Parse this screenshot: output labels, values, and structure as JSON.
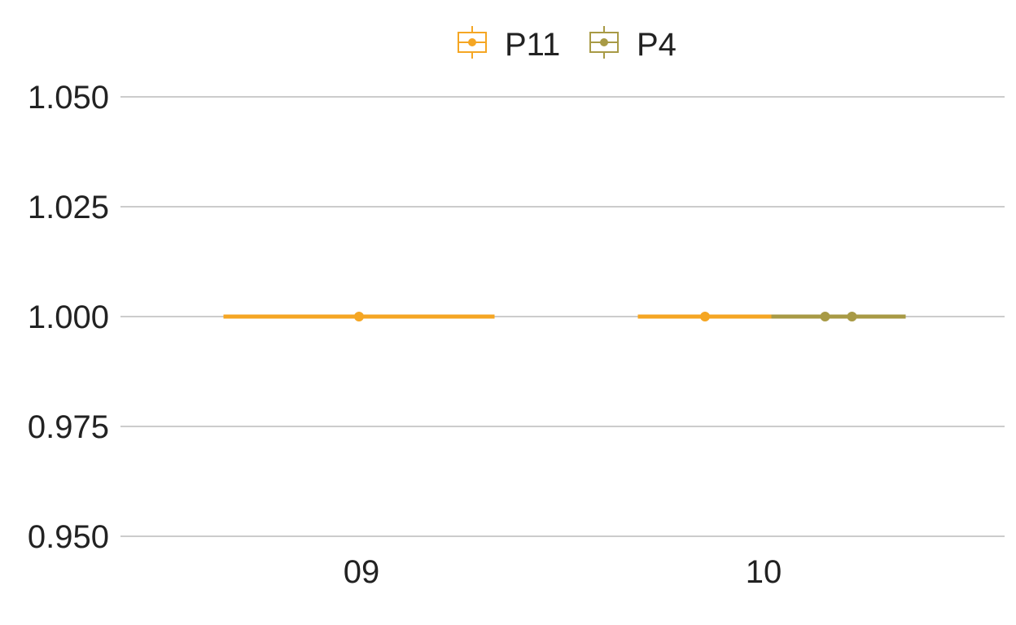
{
  "chart_data": {
    "type": "boxplot",
    "categories": [
      "09",
      "10"
    ],
    "ylim": [
      0.95,
      1.05
    ],
    "yticks": [
      "0.950",
      "0.975",
      "1.000",
      "1.025",
      "1.050"
    ],
    "grid": true,
    "legend_position": "top",
    "series": [
      {
        "name": "P11",
        "color": "#f5a623",
        "boxes": [
          {
            "category": "09",
            "q1": 1.0,
            "median": 1.0,
            "q3": 1.0,
            "whisker_low": 1.0,
            "whisker_high": 1.0,
            "points": [
              1.0
            ]
          },
          {
            "category": "10",
            "q1": 1.0,
            "median": 1.0,
            "q3": 1.0,
            "whisker_low": 1.0,
            "whisker_high": 1.0,
            "points": [
              1.0
            ]
          }
        ]
      },
      {
        "name": "P4",
        "color": "#a89a45",
        "boxes": [
          {
            "category": "10",
            "q1": 1.0,
            "median": 1.0,
            "q3": 1.0,
            "whisker_low": 1.0,
            "whisker_high": 1.0,
            "points": [
              1.0,
              1.0
            ]
          }
        ]
      }
    ]
  }
}
